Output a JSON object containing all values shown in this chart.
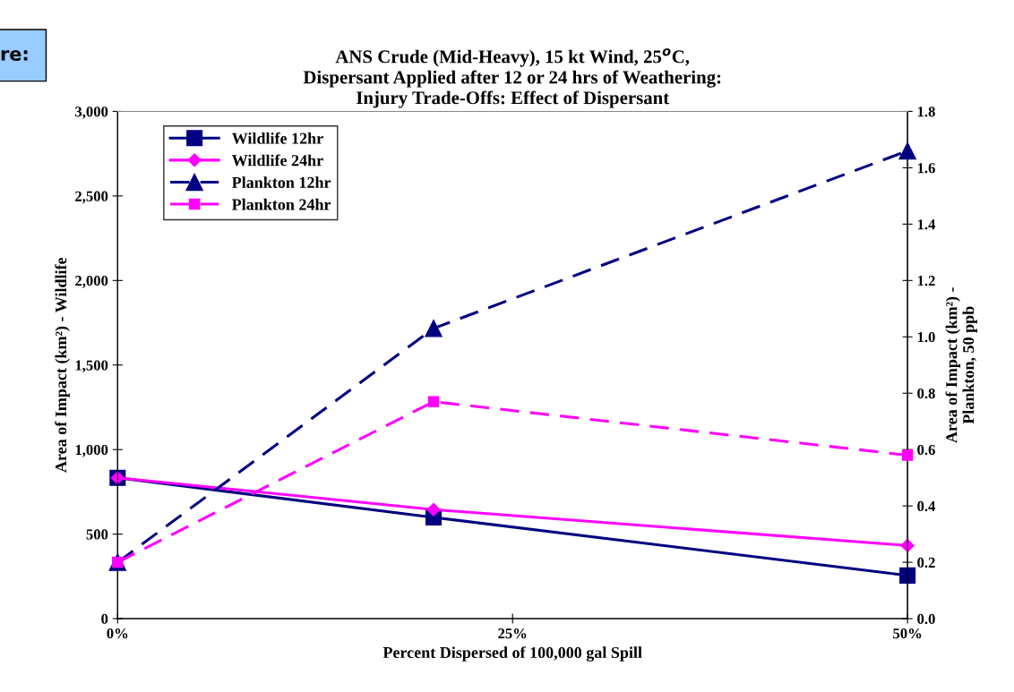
{
  "chart_data": {
    "type": "line",
    "title": "ANS Crude (Mid-Heavy), 15 kt Wind, 25$^{o}$C,\nDispersant Applied after 12 or 24 hrs of Weathering:\nInjury Trade-Offs: Effect of Dispersant",
    "xlabel": "Percent Dispersed of 100,000 gal Spill",
    "ylabel": "Area of Impact (km²) - Wildlife",
    "y2label": "Area of Impact (km²) -\nPlankton, 50 ppb",
    "x": [
      0,
      20,
      50
    ],
    "xlim": [
      0,
      50
    ],
    "xticks": [
      {
        "value": 0,
        "label": "0%"
      },
      {
        "value": 25,
        "label": "25%"
      },
      {
        "value": 50,
        "label": "50%"
      }
    ],
    "ylim": [
      0,
      3000
    ],
    "yticks": [
      {
        "value": 0,
        "label": "0"
      },
      {
        "value": 500,
        "label": "500"
      },
      {
        "value": 1000,
        "label": "1,000"
      },
      {
        "value": 1500,
        "label": "1,500"
      },
      {
        "value": 2000,
        "label": "2,000"
      },
      {
        "value": 2500,
        "label": "2,500"
      },
      {
        "value": 3000,
        "label": "3,000"
      }
    ],
    "y2lim": [
      0,
      1.8
    ],
    "y2ticks": [
      {
        "value": 0,
        "label": "0.0"
      },
      {
        "value": 0.2,
        "label": "0.2"
      },
      {
        "value": 0.4,
        "label": "0.4"
      },
      {
        "value": 0.6,
        "label": "0.6"
      },
      {
        "value": 0.8,
        "label": "0.8"
      },
      {
        "value": 1.0,
        "label": "1.0"
      },
      {
        "value": 1.2,
        "label": "1.2"
      },
      {
        "value": 1.4,
        "label": "1.4"
      },
      {
        "value": 1.6,
        "label": "1.6"
      },
      {
        "value": 1.8,
        "label": "1.8"
      }
    ],
    "series": [
      {
        "name": "Wildlife 12hr",
        "color": "#000080",
        "marker": "square",
        "line_style": "solid",
        "values": [
          833,
          599,
          255
        ]
      },
      {
        "name": "Wildlife 24hr",
        "color": "#ff00ff",
        "marker": "diamond",
        "line_style": "solid",
        "values": [
          833,
          645,
          432
        ]
      },
      {
        "name": "Plankton 12hr",
        "color": "#000080",
        "marker": "triangle",
        "line_style": "dashed",
        "axis": "y2",
        "values": [
          0.2,
          1.03,
          1.66
        ]
      },
      {
        "name": "Plankton 24hr",
        "color": "#ff00ff",
        "marker": "square",
        "line_style": "dashed",
        "axis": "y2",
        "values": [
          0.2,
          0.77,
          0.58
        ]
      }
    ],
    "legend": "top left",
    "grid": false,
    "annotations": [
      "re:"
    ]
  }
}
